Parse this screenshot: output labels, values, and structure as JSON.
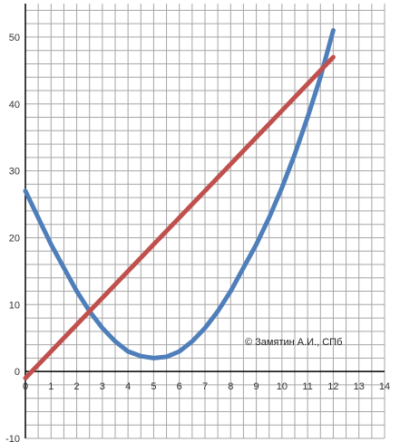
{
  "chart_data": {
    "type": "line",
    "title": "",
    "xlabel": "",
    "ylabel": "",
    "xlim": [
      0,
      14
    ],
    "ylim": [
      -10,
      55
    ],
    "grid": true,
    "x_ticks": [
      "0",
      "1",
      "2",
      "3",
      "4",
      "5",
      "6",
      "7",
      "8",
      "9",
      "10",
      "11",
      "12",
      "13",
      "14"
    ],
    "y_ticks": [
      "-10",
      "0",
      "10",
      "20",
      "30",
      "40",
      "50"
    ],
    "series": [
      {
        "color": "#4f7fba",
        "x": [
          0,
          0.5,
          1,
          1.5,
          2,
          2.5,
          3,
          3.5,
          4,
          4.5,
          5,
          5.5,
          6,
          6.5,
          7,
          7.5,
          8,
          8.5,
          9,
          9.5,
          10,
          10.5,
          11,
          11.5,
          12
        ],
        "y": [
          27,
          23,
          19,
          15.5,
          12,
          9,
          6.5,
          4.5,
          3,
          2.3,
          2,
          2.2,
          3,
          4.5,
          6.5,
          9,
          12,
          15.5,
          19,
          23,
          27.5,
          32.5,
          38,
          44,
          51
        ]
      },
      {
        "color": "#c0504d",
        "x": [
          0,
          12
        ],
        "y": [
          -1,
          47
        ]
      }
    ],
    "annotation": "© Замятин А.И., СПб"
  },
  "colors": {
    "background": "#ffffff",
    "grid": "#a6a6a6",
    "axis": "#000000"
  }
}
